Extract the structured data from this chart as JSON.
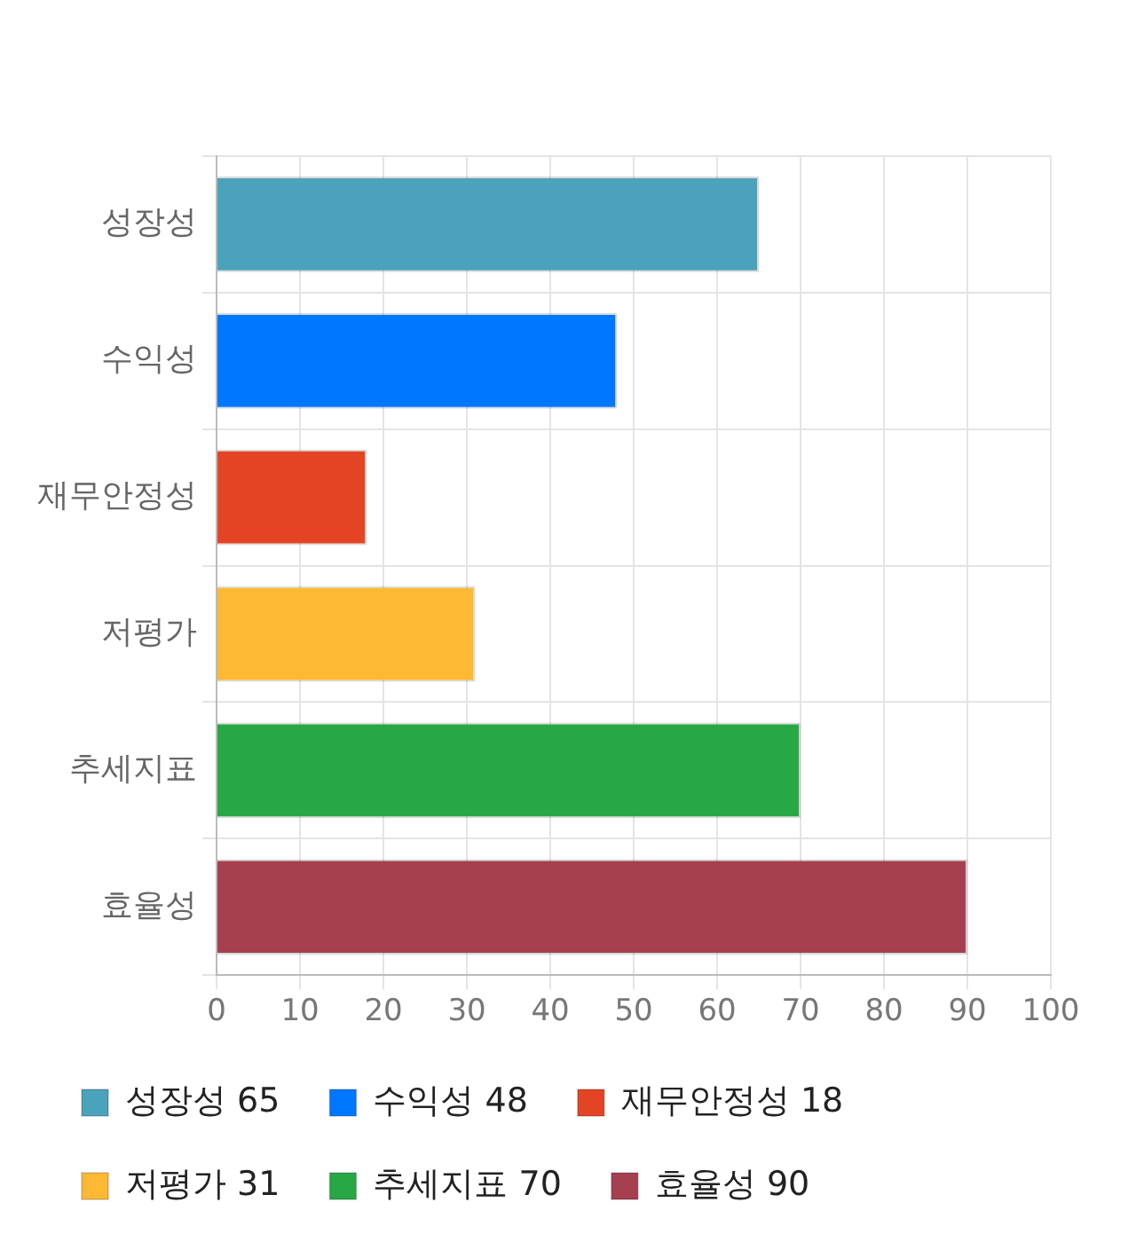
{
  "chart_data": {
    "type": "bar",
    "orientation": "horizontal",
    "categories": [
      "성장성",
      "수익성",
      "재무안정성",
      "저평가",
      "추세지표",
      "효율성"
    ],
    "series": [
      {
        "name": "성장성 65",
        "color": "#4aa3ba",
        "values": [
          65,
          null,
          null,
          null,
          null,
          null
        ]
      },
      {
        "name": "수익성 48",
        "color": "#0077ff",
        "values": [
          null,
          48,
          null,
          null,
          null,
          null
        ]
      },
      {
        "name": "재무안정성 18",
        "color": "#e34524",
        "values": [
          null,
          null,
          18,
          null,
          null,
          null
        ]
      },
      {
        "name": "저평가 31",
        "color": "#fdb933",
        "values": [
          null,
          null,
          null,
          31,
          null,
          null
        ]
      },
      {
        "name": "추세지표 70",
        "color": "#28a745",
        "values": [
          null,
          null,
          null,
          null,
          70,
          null
        ]
      },
      {
        "name": "효율성 90",
        "color": "#a63f4f",
        "values": [
          null,
          null,
          null,
          null,
          null,
          90
        ]
      }
    ],
    "xlim": [
      0,
      100
    ],
    "xticks": [
      0,
      10,
      20,
      30,
      40,
      50,
      60,
      70,
      80,
      90,
      100
    ],
    "grid": true,
    "legend": "bottom"
  }
}
